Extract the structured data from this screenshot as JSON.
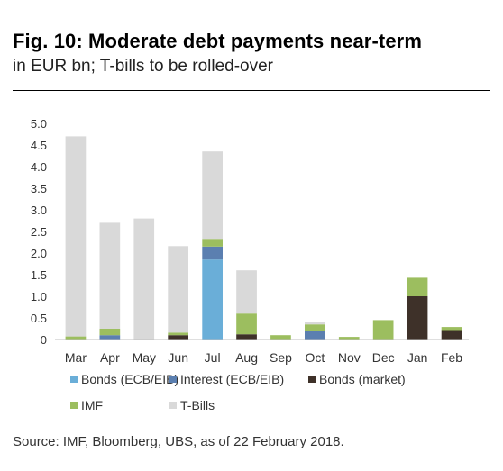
{
  "header": {
    "title": "Fig. 10: Moderate debt payments near-term",
    "subtitle": "in EUR bn; T-bills to be rolled-over"
  },
  "footer": {
    "source": "Source: IMF, Bloomberg, UBS, as of 22 February 2018."
  },
  "chart_data": {
    "type": "bar",
    "stacked": true,
    "categories": [
      "Mar",
      "Apr",
      "May",
      "Jun",
      "Jul",
      "Aug",
      "Sep",
      "Oct",
      "Nov",
      "Dec",
      "Jan",
      "Feb"
    ],
    "ylim": [
      0,
      5.0
    ],
    "yticks": [
      "0",
      "0.5",
      "1.0",
      "1.5",
      "2.0",
      "2.5",
      "3.0",
      "3.5",
      "4.0",
      "4.5",
      "5.0"
    ],
    "grid": false,
    "legend_position": "bottom",
    "series": [
      {
        "name": "Bonds (ECB/EIB)",
        "color": "#6aaed8",
        "values": [
          0,
          0,
          0,
          0,
          1.85,
          0,
          0,
          0,
          0,
          0,
          0,
          0
        ]
      },
      {
        "name": "Interest (ECB/EIB)",
        "color": "#5b7fb0",
        "values": [
          0,
          0.1,
          0,
          0,
          0.3,
          0,
          0,
          0.2,
          0,
          0,
          0,
          0
        ]
      },
      {
        "name": "Bonds (market)",
        "color": "#3e3129",
        "values": [
          0,
          0,
          0,
          0.1,
          0,
          0.12,
          0,
          0,
          0,
          0,
          1.0,
          0.22
        ]
      },
      {
        "name": "IMF",
        "color": "#9cbe5f",
        "values": [
          0.07,
          0.15,
          0,
          0.06,
          0.18,
          0.48,
          0.1,
          0.15,
          0.06,
          0.45,
          0.43,
          0.07
        ]
      },
      {
        "name": "T-Bills",
        "color": "#d9d9d9",
        "values": [
          4.63,
          2.45,
          2.8,
          2.0,
          2.02,
          1.0,
          0,
          0.05,
          0,
          0,
          0,
          0
        ]
      }
    ]
  }
}
